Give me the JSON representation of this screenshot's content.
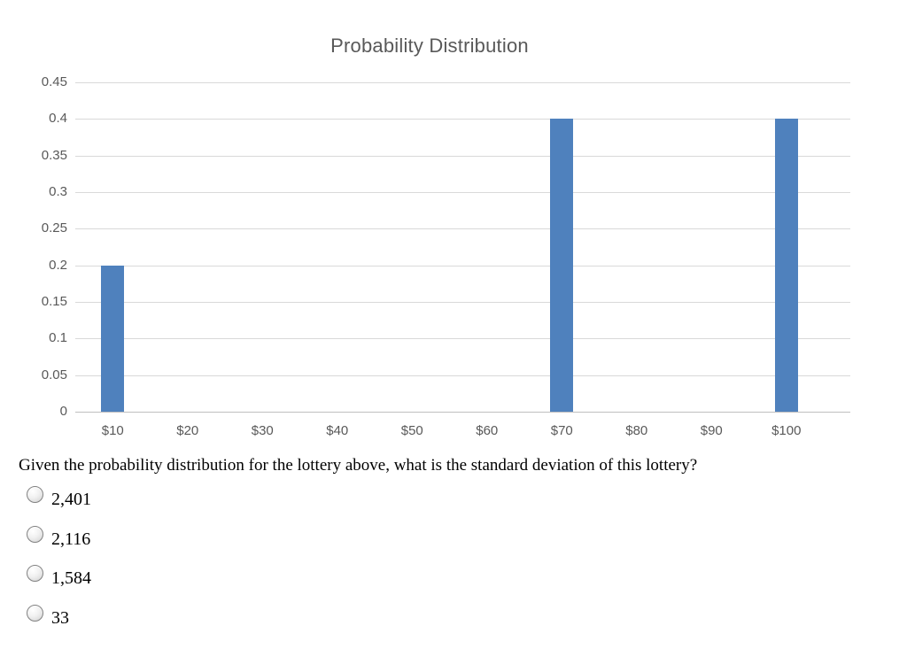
{
  "chart_data": {
    "type": "bar",
    "title": "Probability Distribution",
    "categories": [
      "$10",
      "$20",
      "$30",
      "$40",
      "$50",
      "$60",
      "$70",
      "$80",
      "$90",
      "$100"
    ],
    "values": [
      0.2,
      0,
      0,
      0,
      0,
      0,
      0.4,
      0,
      0,
      0.4
    ],
    "xlabel": "",
    "ylabel": "",
    "ylim": [
      0,
      0.45
    ],
    "yticks": [
      0,
      0.05,
      0.1,
      0.15,
      0.2,
      0.25,
      0.3,
      0.35,
      0.4,
      0.45
    ],
    "ytick_labels": [
      "0",
      "0.05",
      "0.1",
      "0.15",
      "0.2",
      "0.25",
      "0.3",
      "0.35",
      "0.4",
      "0.45"
    ],
    "grid": true,
    "legend": "none",
    "bar_color": "#4f81bd",
    "gridline_color": "#d9d9d9",
    "axis_line_color": "#bfbfbf",
    "tick_label_color": "#595959",
    "title_color": "#595959"
  },
  "question": {
    "text": "Given the probability distribution for the lottery above, what is the standard deviation of this lottery?",
    "options": [
      {
        "label": "2,401",
        "selected": false
      },
      {
        "label": "2,116",
        "selected": false
      },
      {
        "label": "1,584",
        "selected": false
      },
      {
        "label": "33",
        "selected": false
      }
    ]
  }
}
